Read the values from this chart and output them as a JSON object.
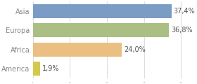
{
  "categories": [
    "Asia",
    "Europa",
    "Africa",
    "America"
  ],
  "values": [
    37.4,
    36.8,
    24.0,
    1.9
  ],
  "labels": [
    "37,4%",
    "36,8%",
    "24,0%",
    "1,9%"
  ],
  "bar_colors": [
    "#7b9cc4",
    "#abbe84",
    "#ebbf82",
    "#d4c84a"
  ],
  "background_color": "#ffffff",
  "grid_color": "#dddddd",
  "text_color": "#888888",
  "xlim": [
    0,
    42
  ],
  "xticks": [
    0,
    10,
    20,
    30,
    40
  ],
  "bar_height": 0.72,
  "label_fontsize": 7.0,
  "tick_fontsize": 7.0
}
